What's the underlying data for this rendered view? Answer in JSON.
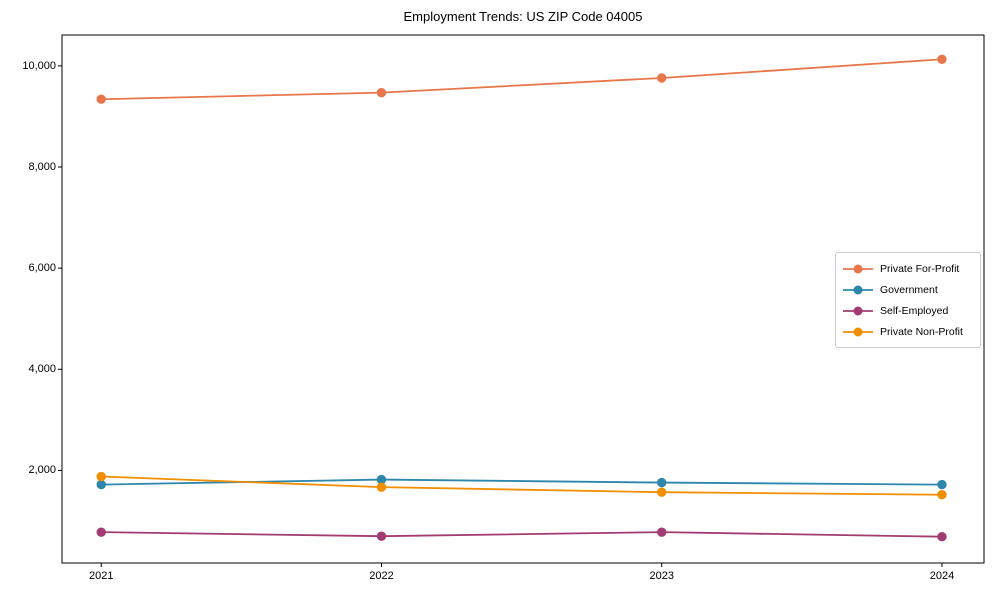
{
  "chart_data": {
    "type": "line",
    "title": "Employment Trends: US ZIP Code 04005",
    "x": [
      2021,
      2022,
      2023,
      2024
    ],
    "xtick_labels": [
      "2021",
      "2022",
      "2023",
      "2024"
    ],
    "yticks": [
      2000,
      4000,
      6000,
      8000,
      10000
    ],
    "ytick_labels": [
      "2,000",
      "4,000",
      "6,000",
      "8,000",
      "10,000"
    ],
    "xlim": [
      2020.86,
      2024.15
    ],
    "ylim": [
      170,
      10610
    ],
    "grid": false,
    "legend_position": "center-right",
    "marker": "circle",
    "series": [
      {
        "name": "Private For-Profit",
        "color": "#E8764B",
        "values": [
          9340,
          9470,
          9760,
          10130
        ]
      },
      {
        "name": "Government",
        "color": "#2E86AB",
        "values": [
          1720,
          1820,
          1760,
          1720
        ]
      },
      {
        "name": "Self-Employed",
        "color": "#A23B72",
        "values": [
          780,
          700,
          780,
          690
        ]
      },
      {
        "name": "Private Non-Profit",
        "color": "#F18F01",
        "values": [
          1880,
          1670,
          1570,
          1520
        ]
      }
    ]
  }
}
